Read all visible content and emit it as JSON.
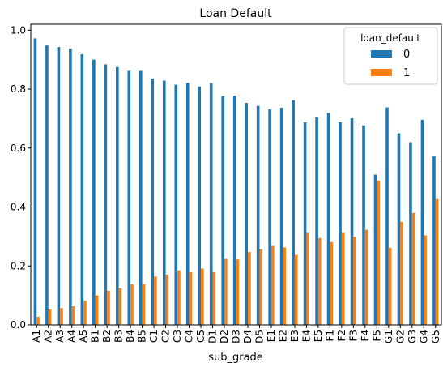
{
  "chart_data": {
    "type": "bar",
    "title": "Loan Default",
    "xlabel": "sub_grade",
    "ylabel": "",
    "ylim": [
      0,
      1.02
    ],
    "yticks": [
      0.0,
      0.2,
      0.4,
      0.6,
      0.8,
      1.0
    ],
    "ytick_labels": [
      "0.0",
      "0.2",
      "0.4",
      "0.6",
      "0.8",
      "1.0"
    ],
    "grid": false,
    "legend": {
      "title": "loan_default",
      "placement": "top-right"
    },
    "categories": [
      "A1",
      "A2",
      "A3",
      "A4",
      "A5",
      "B1",
      "B2",
      "B3",
      "B4",
      "B5",
      "C1",
      "C2",
      "C3",
      "C4",
      "C5",
      "D1",
      "D2",
      "D3",
      "D4",
      "D5",
      "E1",
      "E2",
      "E3",
      "E4",
      "E5",
      "F1",
      "F2",
      "F3",
      "F4",
      "F5",
      "G1",
      "G2",
      "G3",
      "G4",
      "G5"
    ],
    "series": [
      {
        "name": "0",
        "color": "#1f77b4",
        "values": [
          0.972,
          0.948,
          0.943,
          0.937,
          0.918,
          0.9,
          0.884,
          0.875,
          0.862,
          0.862,
          0.836,
          0.829,
          0.815,
          0.821,
          0.809,
          0.821,
          0.776,
          0.778,
          0.753,
          0.743,
          0.732,
          0.737,
          0.762,
          0.688,
          0.705,
          0.719,
          0.688,
          0.701,
          0.677,
          0.51,
          0.738,
          0.65,
          0.62,
          0.696,
          0.573
        ]
      },
      {
        "name": "1",
        "color": "#ff7f0e",
        "values": [
          0.028,
          0.052,
          0.057,
          0.063,
          0.082,
          0.1,
          0.116,
          0.125,
          0.138,
          0.138,
          0.164,
          0.171,
          0.185,
          0.179,
          0.191,
          0.179,
          0.224,
          0.222,
          0.247,
          0.257,
          0.268,
          0.263,
          0.238,
          0.312,
          0.295,
          0.281,
          0.312,
          0.299,
          0.323,
          0.49,
          0.262,
          0.35,
          0.38,
          0.304,
          0.427
        ]
      }
    ]
  }
}
